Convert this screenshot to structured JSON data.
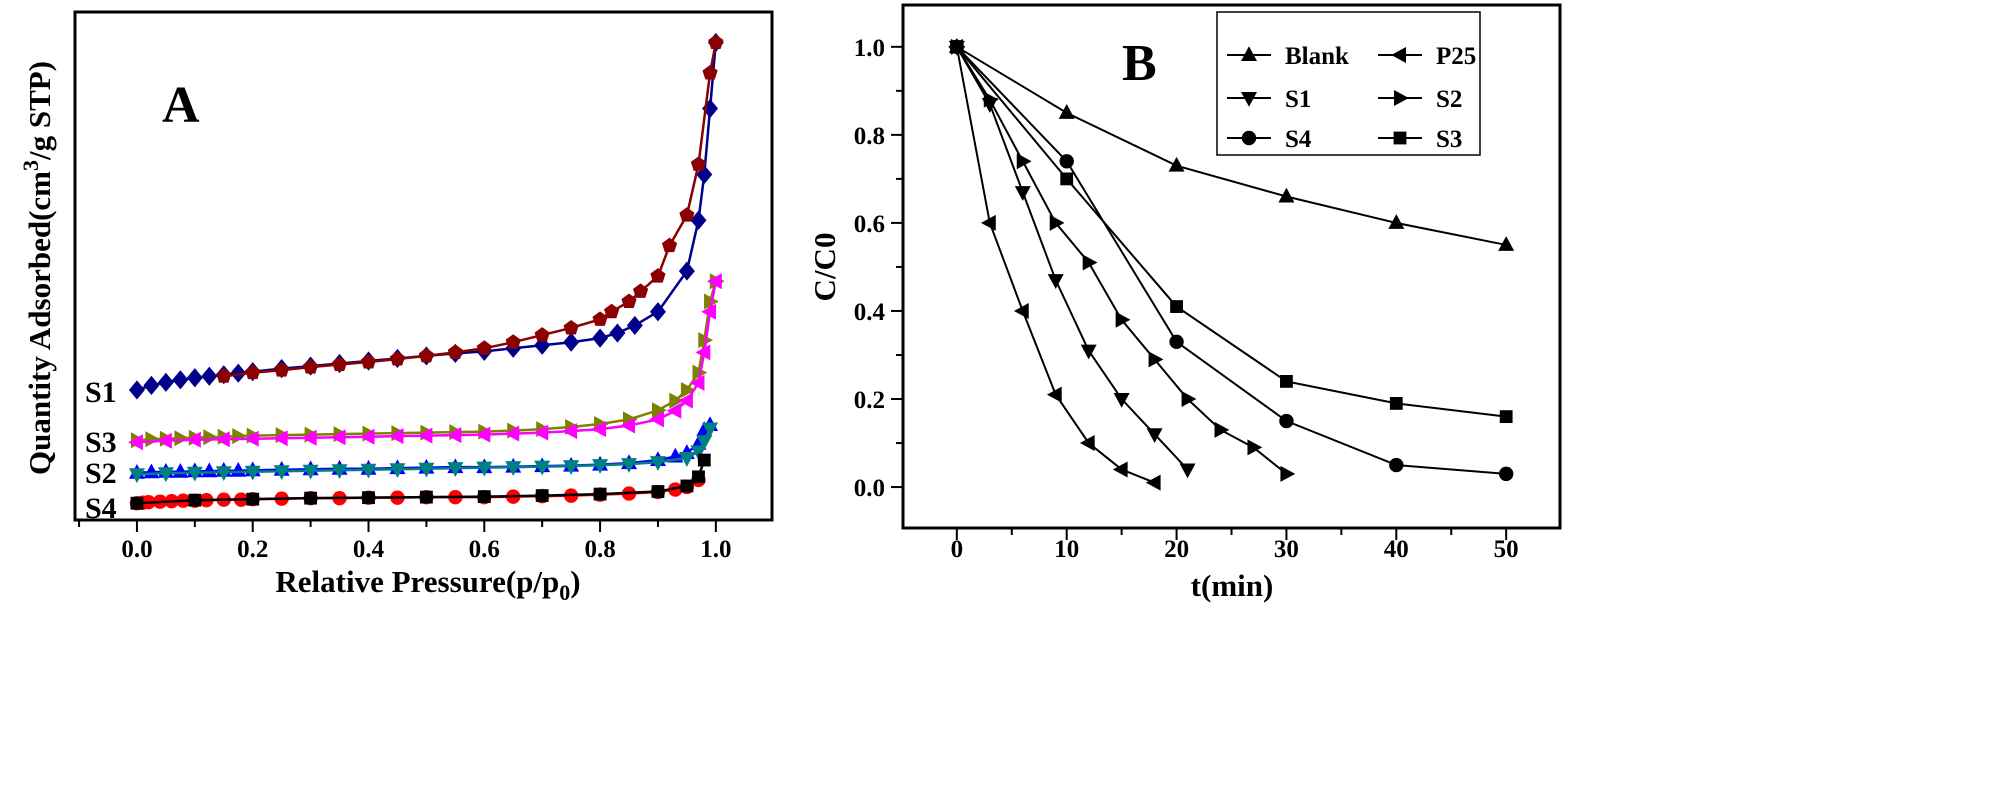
{
  "chart_data": [
    {
      "type": "scatter",
      "panel_label": "A",
      "xlabel_main": "Relative Pressure(p/p",
      "xlabel_sub": "0",
      "xlabel_end": ")",
      "ylabel_main": "Quantity Adsorbed(cm",
      "ylabel_sup": "3",
      "ylabel_end": "/g STP)",
      "xlim": [
        -0.107,
        1.097
      ],
      "ylim": [
        0,
        100
      ],
      "y_ticks_labeled": false,
      "xticks": [
        "0.0",
        "0.2",
        "0.4",
        "0.6",
        "0.8",
        "1.0"
      ],
      "grid": false,
      "annotations": [
        "S1",
        "S3",
        "S2",
        "S4"
      ],
      "series": [
        {
          "sample": "S1",
          "marker": "diamond",
          "color": "#00008B",
          "x": [
            0.0,
            0.025,
            0.05,
            0.075,
            0.1,
            0.125,
            0.15,
            0.175,
            0.2,
            0.25,
            0.3,
            0.35,
            0.4,
            0.45,
            0.5,
            0.55,
            0.6,
            0.65,
            0.7,
            0.75,
            0.8,
            0.83,
            0.86,
            0.9,
            0.95,
            0.97,
            0.98,
            0.99,
            1.0
          ],
          "y": [
            25.6,
            26.5,
            27.1,
            27.6,
            28.0,
            28.3,
            28.6,
            28.9,
            29.2,
            29.8,
            30.3,
            30.8,
            31.3,
            31.8,
            32.3,
            32.8,
            33.2,
            33.8,
            34.4,
            35.0,
            35.8,
            36.8,
            38.3,
            41.0,
            49.0,
            59.0,
            68.0,
            81.0,
            94.0
          ]
        },
        {
          "sample": "S1",
          "marker": "pentagon",
          "color": "#8B0000",
          "x": [
            1.0,
            0.99,
            0.97,
            0.95,
            0.92,
            0.9,
            0.87,
            0.85,
            0.82,
            0.8,
            0.75,
            0.7,
            0.65,
            0.6,
            0.55,
            0.5,
            0.45,
            0.4,
            0.35,
            0.3,
            0.25,
            0.2,
            0.15
          ],
          "y": [
            94.0,
            88.0,
            70.0,
            60.0,
            54.0,
            48.0,
            45.0,
            43.0,
            41.0,
            39.5,
            37.8,
            36.4,
            35.0,
            33.8,
            33.0,
            32.3,
            31.7,
            31.1,
            30.6,
            30.1,
            29.5,
            29.0,
            28.3
          ]
        },
        {
          "sample": "S3",
          "marker": "triangle-right",
          "color": "#808000",
          "x": [
            0.0,
            0.025,
            0.05,
            0.075,
            0.1,
            0.125,
            0.15,
            0.175,
            0.2,
            0.25,
            0.3,
            0.35,
            0.4,
            0.45,
            0.5,
            0.55,
            0.6,
            0.65,
            0.7,
            0.75,
            0.8,
            0.85,
            0.9,
            0.93,
            0.95,
            0.97,
            0.98,
            0.99,
            1.0
          ],
          "y": [
            15.7,
            15.9,
            16.0,
            16.1,
            16.2,
            16.3,
            16.4,
            16.5,
            16.6,
            16.7,
            16.8,
            16.9,
            17.0,
            17.1,
            17.2,
            17.3,
            17.4,
            17.6,
            17.9,
            18.3,
            18.9,
            19.8,
            21.6,
            23.5,
            25.6,
            29.0,
            35.4,
            43.0,
            47.0
          ]
        },
        {
          "sample": "S3",
          "marker": "triangle-left",
          "color": "#FF00FF",
          "x": [
            1.0,
            0.99,
            0.98,
            0.97,
            0.95,
            0.93,
            0.9,
            0.85,
            0.8,
            0.75,
            0.7,
            0.65,
            0.6,
            0.55,
            0.5,
            0.45,
            0.4,
            0.35,
            0.3,
            0.25,
            0.2,
            0.15,
            0.1,
            0.05,
            0.0
          ],
          "y": [
            47.0,
            41.0,
            33.0,
            27.0,
            23.5,
            21.5,
            19.8,
            18.6,
            17.9,
            17.5,
            17.2,
            17.0,
            16.8,
            16.7,
            16.6,
            16.5,
            16.4,
            16.3,
            16.2,
            16.1,
            16.0,
            15.9,
            15.8,
            15.6,
            15.3
          ]
        },
        {
          "sample": "S2",
          "marker": "triangle-up",
          "color": "#0000FF",
          "x": [
            0.0,
            0.025,
            0.05,
            0.075,
            0.1,
            0.125,
            0.15,
            0.175,
            0.2,
            0.25,
            0.3,
            0.35,
            0.4,
            0.45,
            0.5,
            0.55,
            0.6,
            0.65,
            0.7,
            0.75,
            0.8,
            0.85,
            0.9,
            0.93,
            0.95,
            0.97,
            0.98,
            0.99
          ],
          "y": [
            9.3,
            9.4,
            9.5,
            9.5,
            9.6,
            9.6,
            9.7,
            9.7,
            9.8,
            9.9,
            10.0,
            10.1,
            10.1,
            10.2,
            10.3,
            10.4,
            10.4,
            10.5,
            10.6,
            10.7,
            10.9,
            11.2,
            11.8,
            12.5,
            13.2,
            15.0,
            17.7,
            18.7
          ]
        },
        {
          "sample": "S2",
          "marker": "triangle-down",
          "color": "#008080",
          "x": [
            0.99,
            0.98,
            0.97,
            0.95,
            0.9,
            0.85,
            0.8,
            0.75,
            0.7,
            0.65,
            0.6,
            0.55,
            0.5,
            0.45,
            0.4,
            0.35,
            0.3,
            0.25,
            0.2,
            0.15,
            0.1,
            0.05,
            0.0
          ],
          "y": [
            18.0,
            15.5,
            13.5,
            12.2,
            11.4,
            11.0,
            10.8,
            10.6,
            10.5,
            10.4,
            10.3,
            10.2,
            10.1,
            10.0,
            9.9,
            9.8,
            9.7,
            9.6,
            9.5,
            9.4,
            9.3,
            9.2,
            9.0
          ]
        },
        {
          "sample": "S4",
          "marker": "circle",
          "color": "#FF0000",
          "x": [
            0.0,
            0.01,
            0.02,
            0.04,
            0.06,
            0.08,
            0.1,
            0.12,
            0.15,
            0.18,
            0.2,
            0.25,
            0.3,
            0.35,
            0.4,
            0.45,
            0.5,
            0.55,
            0.6,
            0.65,
            0.7,
            0.75,
            0.8,
            0.85,
            0.9,
            0.93,
            0.95,
            0.97
          ],
          "y": [
            3.3,
            3.4,
            3.5,
            3.6,
            3.7,
            3.8,
            3.8,
            3.9,
            4.0,
            4.0,
            4.1,
            4.2,
            4.3,
            4.3,
            4.4,
            4.4,
            4.5,
            4.5,
            4.5,
            4.6,
            4.7,
            4.8,
            5.0,
            5.2,
            5.5,
            6.0,
            6.5,
            7.9
          ]
        },
        {
          "sample": "S4",
          "marker": "square",
          "color": "#000000",
          "x": [
            0.98,
            0.97,
            0.95,
            0.9,
            0.8,
            0.7,
            0.6,
            0.5,
            0.4,
            0.3,
            0.2,
            0.1,
            0.0
          ],
          "y": [
            11.8,
            8.5,
            6.7,
            5.6,
            5.1,
            4.8,
            4.6,
            4.5,
            4.4,
            4.3,
            4.1,
            3.9,
            3.3
          ]
        }
      ]
    },
    {
      "type": "line",
      "panel_label": "B",
      "xlabel": "t(min)",
      "ylabel": "C/C0",
      "xlim": [
        -4.9,
        54.9
      ],
      "ylim": [
        -0.093,
        1.095
      ],
      "xticks": [
        "0",
        "10",
        "20",
        "30",
        "40",
        "50"
      ],
      "yticks": [
        "0.0",
        "0.2",
        "0.4",
        "0.6",
        "0.8",
        "1.0"
      ],
      "grid": false,
      "legend_position": "top-right",
      "series": [
        {
          "name": "Blank",
          "marker": "triangle-up",
          "color": "#000000",
          "x": [
            0,
            10,
            20,
            30,
            40,
            50
          ],
          "y": [
            1.0,
            0.85,
            0.73,
            0.66,
            0.6,
            0.55
          ]
        },
        {
          "name": "P25",
          "marker": "triangle-left",
          "color": "#000000",
          "x": [
            0,
            3,
            6,
            9,
            12,
            15,
            18
          ],
          "y": [
            1.0,
            0.6,
            0.4,
            0.21,
            0.1,
            0.04,
            0.01
          ]
        },
        {
          "name": "S1",
          "marker": "triangle-down",
          "color": "#000000",
          "x": [
            0,
            3,
            6,
            9,
            12,
            15,
            18,
            21
          ],
          "y": [
            1.0,
            0.87,
            0.67,
            0.47,
            0.31,
            0.2,
            0.12,
            0.04
          ]
        },
        {
          "name": "S2",
          "marker": "triangle-right",
          "color": "#000000",
          "x": [
            0,
            3,
            6,
            9,
            12,
            15,
            18,
            21,
            24,
            27,
            30
          ],
          "y": [
            1.0,
            0.88,
            0.74,
            0.6,
            0.51,
            0.38,
            0.29,
            0.2,
            0.13,
            0.09,
            0.03
          ]
        },
        {
          "name": "S4",
          "marker": "circle",
          "color": "#000000",
          "x": [
            0,
            10,
            20,
            30,
            40,
            50
          ],
          "y": [
            1.0,
            0.74,
            0.33,
            0.15,
            0.05,
            0.03
          ]
        },
        {
          "name": "S3",
          "marker": "square",
          "color": "#000000",
          "x": [
            0,
            10,
            20,
            30,
            40,
            50
          ],
          "y": [
            1.0,
            0.7,
            0.41,
            0.24,
            0.19,
            0.16
          ]
        }
      ]
    }
  ]
}
